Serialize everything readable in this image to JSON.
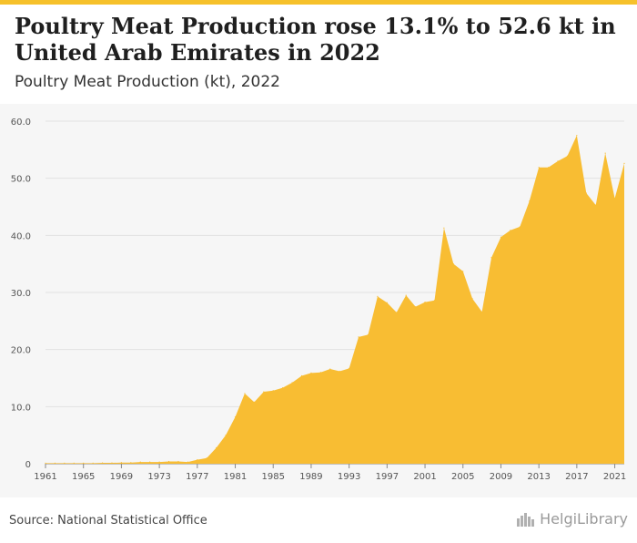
{
  "header": {
    "title": "Poultry Meat Production rose 13.1% to 52.6 kt in United Arab Emirates in 2022",
    "subtitle": "Poultry Meat Production (kt), 2022"
  },
  "footer": {
    "source": "Source: National Statistical Office",
    "brand": "HelgiLibrary"
  },
  "colors": {
    "accent": "#f6c12b",
    "area": "#f8bd33",
    "background": "#f6f6f6"
  },
  "chart_data": {
    "type": "area",
    "title": "Poultry Meat Production rose 13.1% to 52.6 kt in United Arab Emirates in 2022",
    "subtitle": "Poultry Meat Production (kt), 2022",
    "xlabel": "",
    "ylabel": "",
    "xlim": [
      1961,
      2022
    ],
    "ylim": [
      0,
      60
    ],
    "grid": true,
    "legend": "none",
    "y_ticks": [
      "0",
      "10.0",
      "20.0",
      "30.0",
      "40.0",
      "50.0",
      "60.0"
    ],
    "x_ticks": [
      "1961",
      "1965",
      "1969",
      "1973",
      "1977",
      "1981",
      "1985",
      "1989",
      "1993",
      "1997",
      "2001",
      "2005",
      "2009",
      "2013",
      "2017",
      "2021"
    ],
    "x": [
      1961,
      1962,
      1963,
      1964,
      1965,
      1966,
      1967,
      1968,
      1969,
      1970,
      1971,
      1972,
      1973,
      1974,
      1975,
      1976,
      1977,
      1978,
      1979,
      1980,
      1981,
      1982,
      1983,
      1984,
      1985,
      1986,
      1987,
      1988,
      1989,
      1990,
      1991,
      1992,
      1993,
      1994,
      1995,
      1996,
      1997,
      1998,
      1999,
      2000,
      2001,
      2002,
      2003,
      2004,
      2005,
      2006,
      2007,
      2008,
      2009,
      2010,
      2011,
      2012,
      2013,
      2014,
      2015,
      2016,
      2017,
      2018,
      2019,
      2020,
      2021,
      2022
    ],
    "series": [
      {
        "values": [
          0.1,
          0.1,
          0.1,
          0.1,
          0.1,
          0.1,
          0.15,
          0.15,
          0.2,
          0.2,
          0.3,
          0.3,
          0.3,
          0.4,
          0.4,
          0.3,
          0.7,
          1.0,
          2.8,
          5.0,
          8.2,
          12.3,
          10.8,
          12.6,
          12.8,
          13.3,
          14.2,
          15.4,
          15.9,
          16.0,
          16.6,
          16.2,
          16.7,
          22.2,
          22.6,
          29.3,
          28.2,
          26.5,
          29.5,
          27.5,
          28.3,
          28.6,
          41.3,
          35.0,
          33.7,
          28.9,
          26.6,
          36.1,
          39.7,
          40.9,
          41.5,
          46.0,
          51.9,
          51.9,
          53.0,
          53.9,
          57.5,
          47.4,
          45.3,
          54.4,
          46.5,
          52.6
        ]
      }
    ]
  }
}
